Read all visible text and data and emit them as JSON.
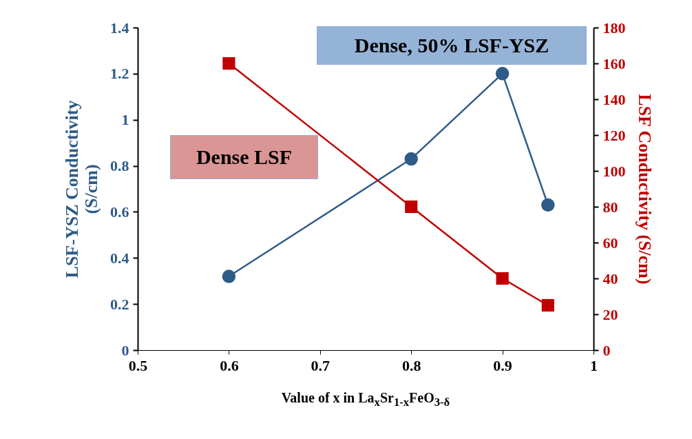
{
  "chart_data": {
    "type": "line",
    "xlabel": "Value of x in La$_{x}$Sr$_{1-x}$FeO$_{3-δ}$",
    "ylabel": "LSF-YSZ Conductivity\n(S/cm)",
    "y2label": "LSF Conductivity  (S/cm)",
    "x": [
      0.6,
      0.8,
      0.9,
      0.95
    ],
    "xlim": [
      0.5,
      1
    ],
    "xticks": [
      0.5,
      0.6,
      0.7,
      0.8,
      0.9,
      1
    ],
    "ylim": [
      0,
      1.4
    ],
    "yticks": [
      0,
      0.2,
      0.4,
      0.6,
      0.8,
      1,
      1.2,
      1.4
    ],
    "y2lim": [
      0,
      180
    ],
    "y2ticks": [
      0,
      20,
      40,
      60,
      80,
      100,
      120,
      140,
      160,
      180
    ],
    "grid": false,
    "series": [
      {
        "name": "Dense, 50% LSF-YSZ",
        "color": "#2f5b88",
        "marker": "circle",
        "values": [
          0.32,
          0.83,
          1.2,
          0.63
        ]
      },
      {
        "name": "Dense LSF",
        "color": "#c00000",
        "marker": "square",
        "axis": "y2",
        "values": [
          160,
          80,
          40,
          25
        ]
      }
    ]
  }
}
